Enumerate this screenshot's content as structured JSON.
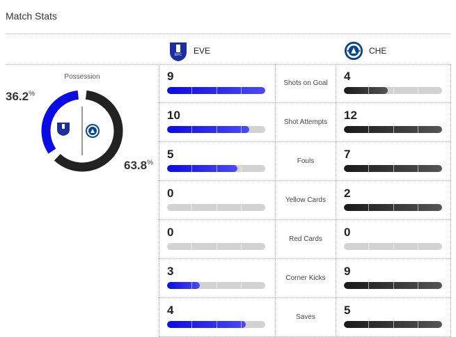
{
  "title": "Match Stats",
  "home": {
    "abbr": "EVE",
    "color": "#0a0ae6"
  },
  "away": {
    "abbr": "CHE",
    "color": "#222222"
  },
  "possession": {
    "label": "Possession",
    "home_pct": "36.2",
    "away_pct": "63.8",
    "unit": "%",
    "home_value": 36.2,
    "away_value": 63.8
  },
  "stats": [
    {
      "label": "Shots on Goal",
      "home": "9",
      "away": "4"
    },
    {
      "label": "Shot Attempts",
      "home": "10",
      "away": "12"
    },
    {
      "label": "Fouls",
      "home": "5",
      "away": "7"
    },
    {
      "label": "Yellow Cards",
      "home": "0",
      "away": "2"
    },
    {
      "label": "Red Cards",
      "home": "0",
      "away": "0"
    },
    {
      "label": "Corner Kicks",
      "home": "3",
      "away": "9"
    },
    {
      "label": "Saves",
      "home": "4",
      "away": "5"
    }
  ]
}
